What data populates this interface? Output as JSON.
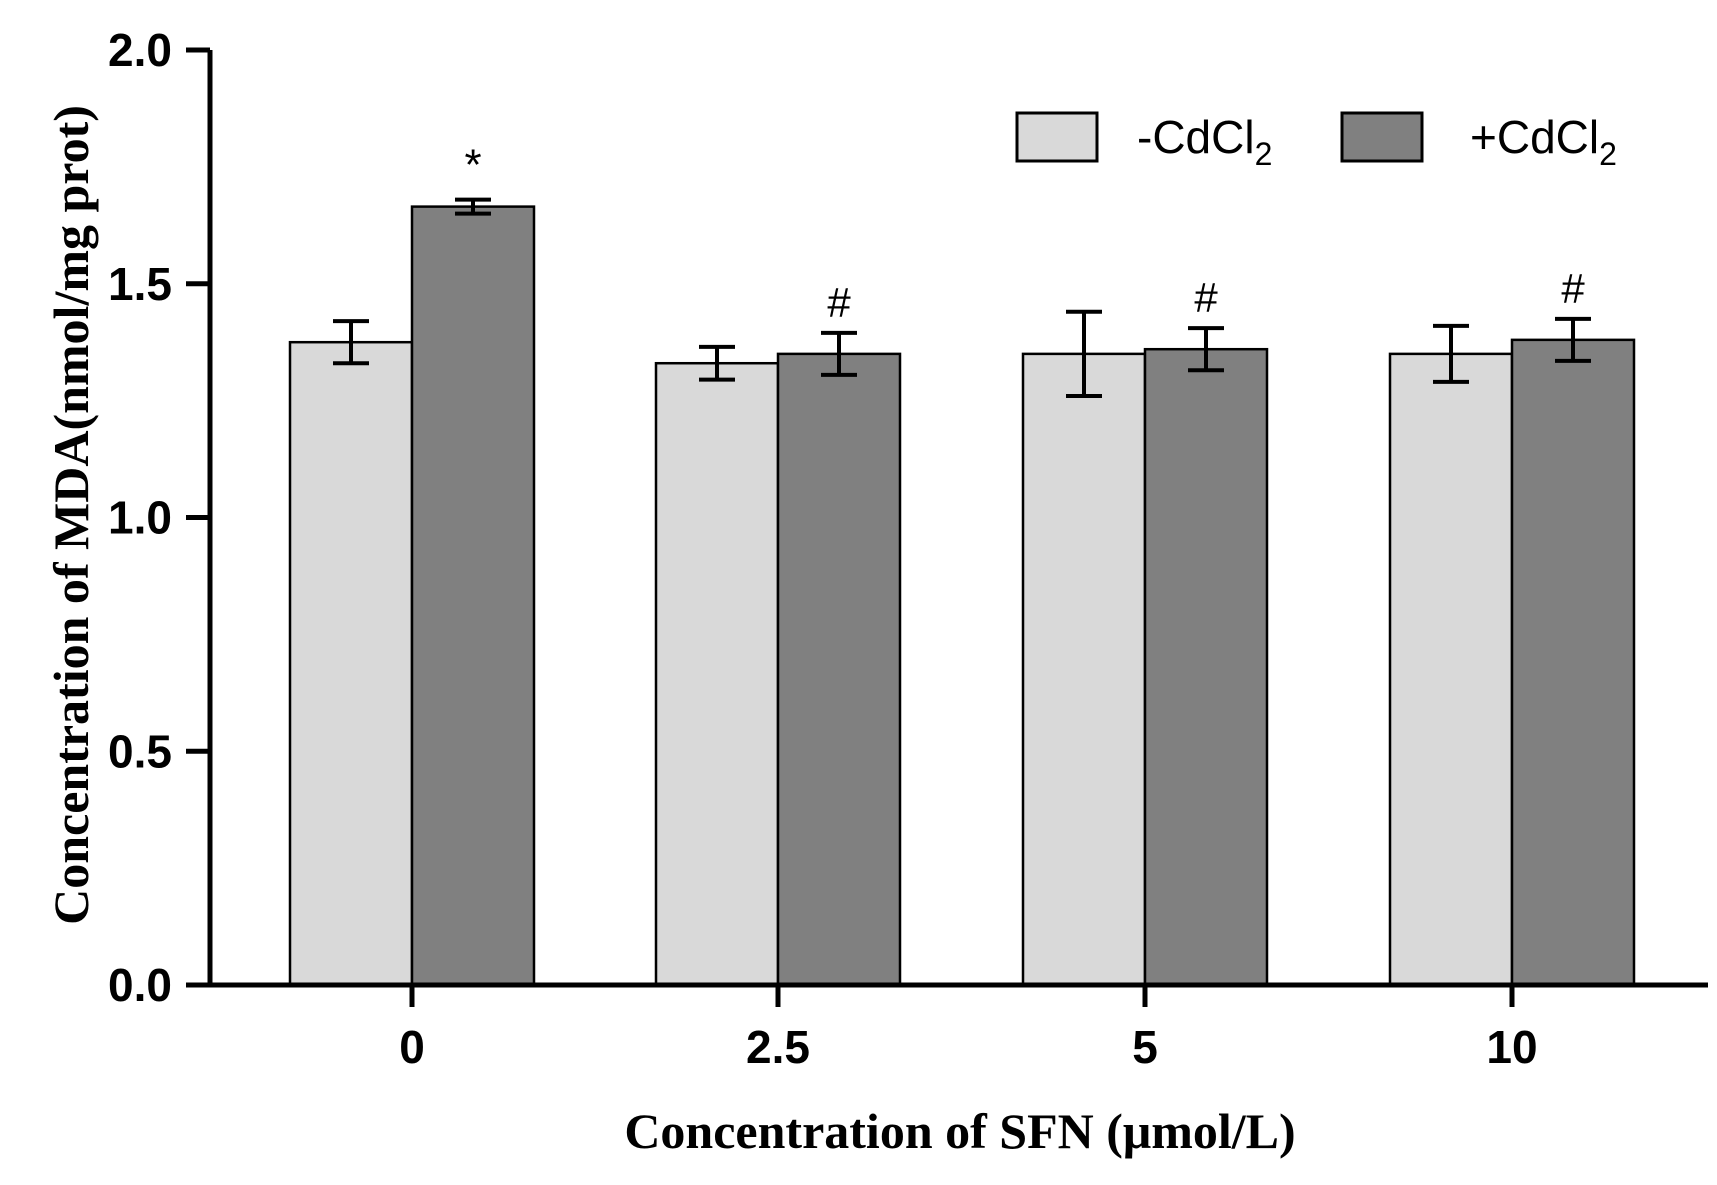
{
  "chart_data": {
    "type": "bar",
    "title": "",
    "xlabel": "Concentration of SFN (μmol/L)",
    "ylabel": "Concentration of MDA(nmol/mg prot)",
    "categories": [
      "0",
      "2.5",
      "5",
      "10"
    ],
    "ylim": [
      0,
      2.0
    ],
    "yticks": [
      "0.0",
      "0.5",
      "1.0",
      "1.5",
      "2.0"
    ],
    "grid": false,
    "legend_position": "top-right",
    "series": [
      {
        "name": "-CdCl2",
        "legend_label": "-CdCl",
        "legend_sub": "2",
        "color": "#d9d9d9",
        "values": [
          1.375,
          1.33,
          1.35,
          1.35
        ],
        "errors": [
          0.045,
          0.035,
          0.09,
          0.06
        ],
        "annotations": [
          "",
          "",
          "",
          ""
        ]
      },
      {
        "name": "+CdCl2",
        "legend_label": "+CdCl",
        "legend_sub": "2",
        "color": "#808080",
        "values": [
          1.665,
          1.35,
          1.36,
          1.38
        ],
        "errors": [
          0.015,
          0.045,
          0.045,
          0.045
        ],
        "annotations": [
          "*",
          "#",
          "#",
          "#"
        ]
      }
    ]
  }
}
